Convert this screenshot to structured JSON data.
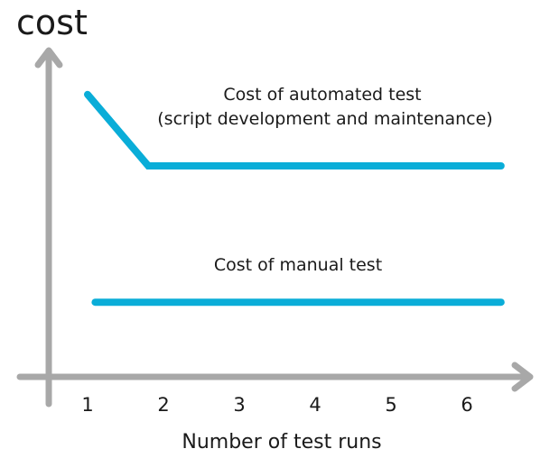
{
  "chart_data": {
    "type": "line",
    "title": "",
    "ylabel": "cost",
    "xlabel": "Number of test runs",
    "x_ticks": [
      "1",
      "2",
      "3",
      "4",
      "5",
      "6"
    ],
    "xlim": [
      0.5,
      7.0
    ],
    "ylim": [
      0,
      10
    ],
    "grid": false,
    "axis_color": "#a8a8a8",
    "series": [
      {
        "color": "#0aadd8",
        "label_lines": [
          "Cost of automated test",
          "(script development and maintenance)"
        ],
        "points": [
          [
            1,
            8.7
          ],
          [
            1.8,
            6.5
          ],
          [
            6.45,
            6.5
          ]
        ]
      },
      {
        "color": "#0aadd8",
        "label_lines": [
          "Cost of manual test"
        ],
        "points": [
          [
            1.1,
            2.3
          ],
          [
            6.45,
            2.3
          ]
        ]
      }
    ]
  }
}
